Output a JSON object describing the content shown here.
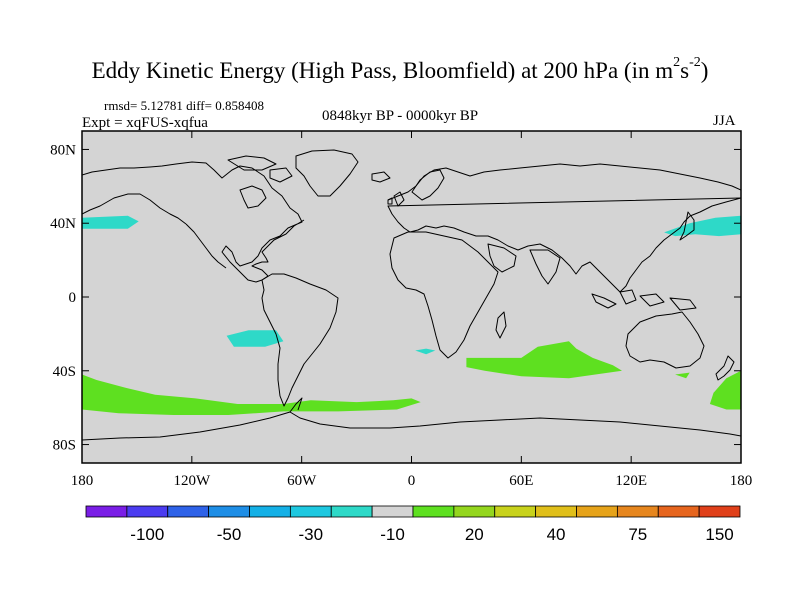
{
  "title": {
    "main": "Eddy Kinetic Energy (High Pass, Bloomfield) at 200 hPa (in m",
    "sup1": "2",
    "mid": "s",
    "sup2": "-2",
    "end": ")"
  },
  "stats": {
    "rmsd_line": "rmsd= 5.12781 diff= 0.858408"
  },
  "experiment": "Expt = xqFUS-xqfua",
  "period": "0848kyr BP - 0000kyr BP",
  "season": "JJA",
  "map": {
    "projection": "cylindrical-equidistant",
    "lon_range": [
      -180,
      180
    ],
    "lat_range": [
      -90,
      90
    ],
    "background_color": "#d4d4d4",
    "coastline_color": "#000000",
    "lat_ticks": [
      "80N",
      "40N",
      "0",
      "40S",
      "80S"
    ],
    "lat_values": [
      80,
      40,
      0,
      -40,
      -80
    ],
    "lon_ticks": [
      "180",
      "120W",
      "60W",
      "0",
      "60E",
      "120E",
      "180"
    ],
    "lon_values": [
      -180,
      -120,
      -60,
      0,
      60,
      120,
      180
    ]
  },
  "anomalies": [
    {
      "id": "n-pacific-east",
      "category": "-10..-30",
      "color": "#2ed9c8",
      "lonlat": [
        [
          -180,
          43
        ],
        [
          -155,
          44
        ],
        [
          -149,
          41
        ],
        [
          -155,
          37
        ],
        [
          -180,
          37
        ]
      ]
    },
    {
      "id": "n-pacific-west",
      "category": "-10..-30",
      "color": "#2ed9c8",
      "lonlat": [
        [
          138,
          35
        ],
        [
          152,
          40
        ],
        [
          166,
          43
        ],
        [
          180,
          44
        ],
        [
          180,
          34
        ],
        [
          168,
          33
        ],
        [
          155,
          34
        ],
        [
          144,
          33
        ]
      ]
    },
    {
      "id": "se-pacific",
      "category": "-10..-30",
      "color": "#2ed9c8",
      "lonlat": [
        [
          -101,
          -21
        ],
        [
          -89,
          -18
        ],
        [
          -74,
          -18
        ],
        [
          -70,
          -24
        ],
        [
          -80,
          -27
        ],
        [
          -97,
          -27
        ]
      ]
    },
    {
      "id": "s-atlantic-small",
      "category": "-10..-30",
      "color": "#2ed9c8",
      "lonlat": [
        [
          2,
          -29
        ],
        [
          8,
          -28
        ],
        [
          13,
          -29
        ],
        [
          8,
          -31
        ]
      ]
    },
    {
      "id": "southern-ocean-pacific",
      "category": "10..20",
      "color": "#5ee020",
      "lonlat": [
        [
          -180,
          -42
        ],
        [
          -172,
          -45
        ],
        [
          -157,
          -49
        ],
        [
          -140,
          -53
        ],
        [
          -118,
          -55
        ],
        [
          -95,
          -58
        ],
        [
          -70,
          -58
        ],
        [
          -55,
          -56
        ],
        [
          -30,
          -57
        ],
        [
          -10,
          -56
        ],
        [
          0,
          -55
        ],
        [
          5,
          -57
        ],
        [
          -8,
          -61
        ],
        [
          -40,
          -62
        ],
        [
          -70,
          -62
        ],
        [
          -100,
          -64
        ],
        [
          -130,
          -64
        ],
        [
          -160,
          -63
        ],
        [
          -180,
          -61
        ]
      ]
    },
    {
      "id": "southern-ocean-indian",
      "category": "10..20",
      "color": "#5ee020",
      "lonlat": [
        [
          30,
          -33
        ],
        [
          60,
          -33
        ],
        [
          69,
          -27
        ],
        [
          86,
          -24
        ],
        [
          90,
          -28
        ],
        [
          99,
          -33
        ],
        [
          110,
          -37
        ],
        [
          115,
          -40
        ],
        [
          86,
          -44
        ],
        [
          60,
          -43
        ],
        [
          40,
          -40
        ],
        [
          30,
          -38
        ]
      ]
    },
    {
      "id": "south-of-australia",
      "category": "10..20",
      "color": "#5ee020",
      "lonlat": [
        [
          144,
          -42
        ],
        [
          152,
          -41
        ],
        [
          150,
          -44
        ]
      ]
    },
    {
      "id": "south-of-nz",
      "category": "10..20",
      "color": "#5ee020",
      "lonlat": [
        [
          180,
          -40
        ],
        [
          172,
          -44
        ],
        [
          165,
          -52
        ],
        [
          163,
          -58
        ],
        [
          172,
          -61
        ],
        [
          180,
          -61
        ]
      ]
    }
  ],
  "colorbar": {
    "colors": [
      "#7a1ee6",
      "#4b3cf0",
      "#2e62e8",
      "#1e8ee6",
      "#14b0e6",
      "#1ec8e0",
      "#2ed9c8",
      "#d4d4d4",
      "#5ee020",
      "#94d61e",
      "#c8d21c",
      "#e0bf1a",
      "#e6a31a",
      "#e6861e",
      "#e6651e",
      "#e0401a"
    ],
    "labels": [
      "-100",
      "-50",
      "-30",
      "-10",
      "20",
      "40",
      "75",
      "150"
    ],
    "label_boundaries": [
      2,
      4,
      6,
      8,
      10,
      12,
      14,
      16
    ]
  }
}
